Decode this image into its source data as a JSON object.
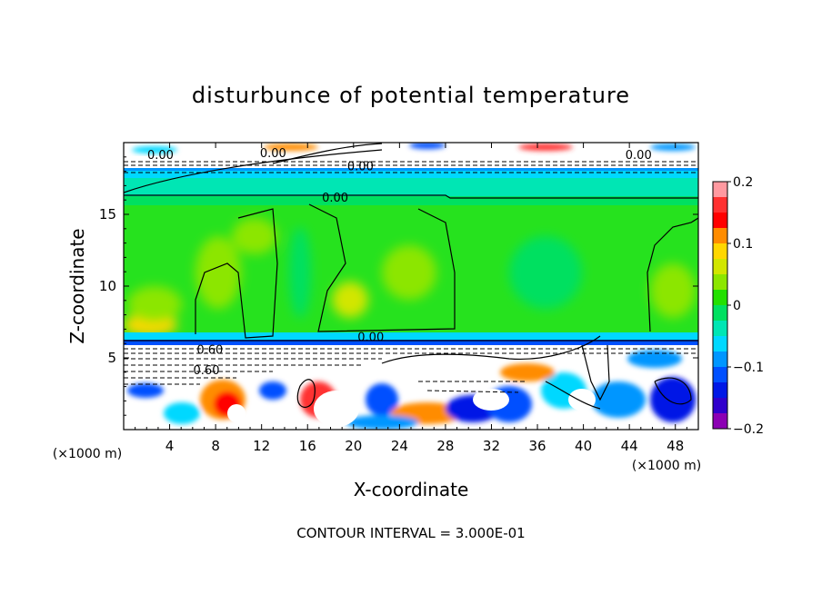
{
  "chart_data": {
    "type": "heatmap",
    "title": "disturbunce of potential temperature",
    "xlabel": "X-coordinate",
    "ylabel": "Z-coordinate",
    "x_unit": "(×1000 m)",
    "y_unit": "(×1000 m)",
    "xlim": [
      0,
      50
    ],
    "ylim": [
      0,
      20
    ],
    "x_ticks": [
      4,
      8,
      12,
      16,
      20,
      24,
      28,
      32,
      36,
      40,
      44,
      48
    ],
    "y_ticks": [
      5,
      10,
      15
    ],
    "colorbar": {
      "range": [
        -0.2,
        0.2
      ],
      "tick_labels": [
        "0.2",
        "0.1",
        "0",
        "−0.1",
        "−0.2"
      ],
      "tick_values": [
        0.2,
        0.1,
        0,
        -0.1,
        -0.2
      ],
      "colors": [
        "#ff99a0",
        "#ff3030",
        "#ff0000",
        "#ff8c00",
        "#ffd700",
        "#d2e600",
        "#8ce600",
        "#22e000",
        "#00e060",
        "#00e6b4",
        "#00d8ff",
        "#0096ff",
        "#0050ff",
        "#0018e6",
        "#3000cc",
        "#8c00b4"
      ]
    },
    "contour_interval_text": "CONTOUR INTERVAL = 3.000E-01",
    "contour_labels": [
      {
        "text": "0.00",
        "x": 3.2,
        "z": 19.0
      },
      {
        "text": "0.00",
        "x": 13.0,
        "z": 19.1
      },
      {
        "text": "0.00",
        "x": 20.6,
        "z": 18.2
      },
      {
        "text": "0.00",
        "x": 44.8,
        "z": 19.0
      },
      {
        "text": "0.00",
        "x": 18.4,
        "z": 16.0
      },
      {
        "text": "0.00",
        "x": 21.5,
        "z": 6.3
      },
      {
        "text": "0.60",
        "x": 7.5,
        "z": 5.4
      },
      {
        "text": "0.60",
        "x": 7.2,
        "z": 4.0
      }
    ]
  }
}
